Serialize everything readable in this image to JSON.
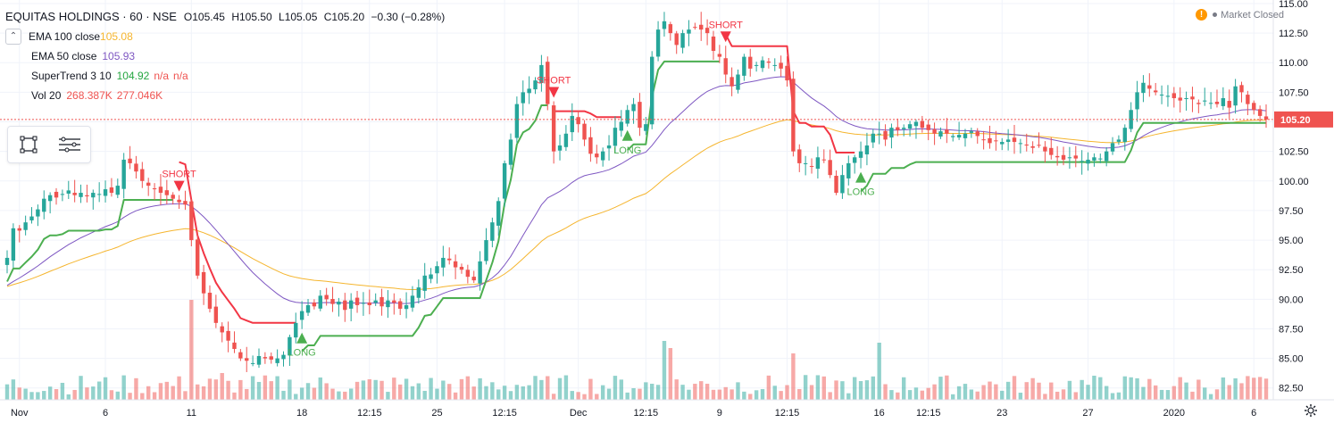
{
  "legend": {
    "title": "EQUITAS HOLDINGS · 60 · NSE",
    "open": "O105.45",
    "high": "H105.50",
    "low": "L105.05",
    "close": "C105.20",
    "change": "−0.30 (−0.28%)",
    "indicators": [
      {
        "name": "EMA 100 close",
        "values": [
          "105.08"
        ],
        "colors": [
          "#f5b52e"
        ]
      },
      {
        "name": "EMA 50 close",
        "values": [
          "105.93"
        ],
        "colors": [
          "#7e57c2"
        ]
      },
      {
        "name": "SuperTrend 3 10",
        "values": [
          "104.92",
          "n/a",
          "n/a"
        ],
        "colors": [
          "#26a641",
          "#ef5350",
          "#ef5350"
        ]
      },
      {
        "name": "Vol 20",
        "values": [
          "268.387K",
          "277.046K"
        ],
        "colors": [
          "#ef5350",
          "#ef5350"
        ]
      }
    ]
  },
  "status": {
    "market": "Market Closed",
    "warn": "!"
  },
  "icons": {
    "toolbar": [
      "square-select-icon",
      "menu-lines-icon"
    ],
    "settings": "gear-icon"
  },
  "colors": {
    "up": "#26a69a",
    "down": "#ef5350",
    "ema100": "#f5b52e",
    "ema50": "#7e57c2",
    "st_up": "#4caf50",
    "st_down": "#f23645",
    "grid": "#f0f3fa",
    "text": "#131722",
    "axis": "#787b86"
  },
  "chart_data": {
    "type": "candlestick",
    "symbol": "EQUITAS HOLDINGS",
    "interval": "60",
    "exchange": "NSE",
    "last_price": "105.20",
    "ylim": [
      81.5,
      115.3
    ],
    "y_ticks": [
      "115.00",
      "112.50",
      "110.00",
      "107.50",
      "105.00",
      "102.50",
      "100.00",
      "97.50",
      "95.00",
      "92.50",
      "90.00",
      "87.50",
      "85.00",
      "82.50"
    ],
    "x_ticks": [
      {
        "label": "Nov",
        "bar": 2
      },
      {
        "label": "6",
        "bar": 16
      },
      {
        "label": "11",
        "bar": 30
      },
      {
        "label": "18",
        "bar": 48
      },
      {
        "label": "12:15",
        "bar": 59
      },
      {
        "label": "25",
        "bar": 70
      },
      {
        "label": "12:15",
        "bar": 81
      },
      {
        "label": "Dec",
        "bar": 93
      },
      {
        "label": "12:15",
        "bar": 104
      },
      {
        "label": "9",
        "bar": 116
      },
      {
        "label": "12:15",
        "bar": 127
      },
      {
        "label": "16",
        "bar": 142
      },
      {
        "label": "12:15",
        "bar": 150
      },
      {
        "label": "23",
        "bar": 162
      },
      {
        "label": "27",
        "bar": 176
      },
      {
        "label": "2020",
        "bar": 190
      },
      {
        "label": "6",
        "bar": 203
      }
    ],
    "close": [
      93.5,
      96.0,
      95.8,
      96.5,
      97.0,
      97.6,
      98.5,
      98.8,
      98.6,
      98.9,
      99.2,
      98.8,
      99.0,
      98.7,
      99.0,
      98.9,
      99.3,
      99.0,
      99.6,
      101.8,
      101.5,
      100.8,
      100.0,
      99.6,
      99.3,
      99.0,
      98.8,
      98.5,
      98.2,
      98.0,
      95.0,
      92.0,
      90.5,
      89.2,
      88.0,
      87.2,
      86.5,
      85.8,
      85.0,
      84.8,
      84.6,
      85.2,
      85.0,
      84.9,
      85.0,
      85.3,
      86.8,
      88.0,
      89.0,
      89.5,
      89.4,
      90.3,
      90.0,
      89.6,
      89.8,
      89.1,
      89.9,
      89.5,
      89.7,
      89.5,
      89.9,
      89.4,
      89.9,
      89.7,
      89.2,
      89.5,
      90.3,
      91.0,
      92.0,
      92.1,
      92.8,
      93.5,
      93.3,
      92.7,
      92.5,
      91.9,
      91.6,
      93.2,
      95.0,
      96.5,
      98.3,
      101.5,
      103.5,
      106.5,
      107.5,
      107.8,
      108.5,
      109.8,
      106.5,
      102.5,
      103.0,
      104.0,
      105.5,
      104.8,
      103.5,
      102.3,
      102.0,
      102.5,
      103.0,
      104.5,
      105.0,
      106.0,
      106.5,
      104.5,
      104.8,
      110.5,
      112.8,
      113.5,
      112.5,
      111.5,
      112.5,
      112.8,
      113.0,
      112.8,
      112.5,
      111.0,
      110.5,
      109.0,
      108.0,
      109.0,
      110.5,
      109.5,
      109.8,
      110.2,
      110.0,
      109.8,
      109.5,
      108.5,
      102.5,
      101.5,
      101.5,
      101.2,
      102.0,
      101.8,
      100.5,
      99.0,
      100.5,
      101.5,
      102.0,
      102.5,
      103.0,
      104.0,
      104.0,
      103.5,
      104.5,
      104.3,
      104.5,
      104.8,
      105.0,
      104.5,
      104.3,
      104.0,
      104.2,
      104.0,
      103.8,
      103.9,
      104.0,
      104.2,
      103.8,
      103.5,
      103.2,
      103.4,
      103.3,
      103.5,
      103.3,
      103.2,
      103.0,
      102.8,
      103.0,
      102.5,
      102.2,
      102.0,
      101.8,
      102.0,
      101.9,
      101.7,
      101.8,
      102.0,
      101.9,
      102.5,
      103.2,
      103.5,
      104.5,
      106.0,
      107.5,
      108.3,
      107.8,
      107.5,
      107.3,
      107.2,
      107.0,
      106.8,
      107.0,
      106.9,
      106.5,
      106.8,
      106.6,
      106.5,
      107.0,
      106.2,
      108.0,
      107.5,
      106.5,
      106.0,
      105.5,
      105.2
    ]
  }
}
